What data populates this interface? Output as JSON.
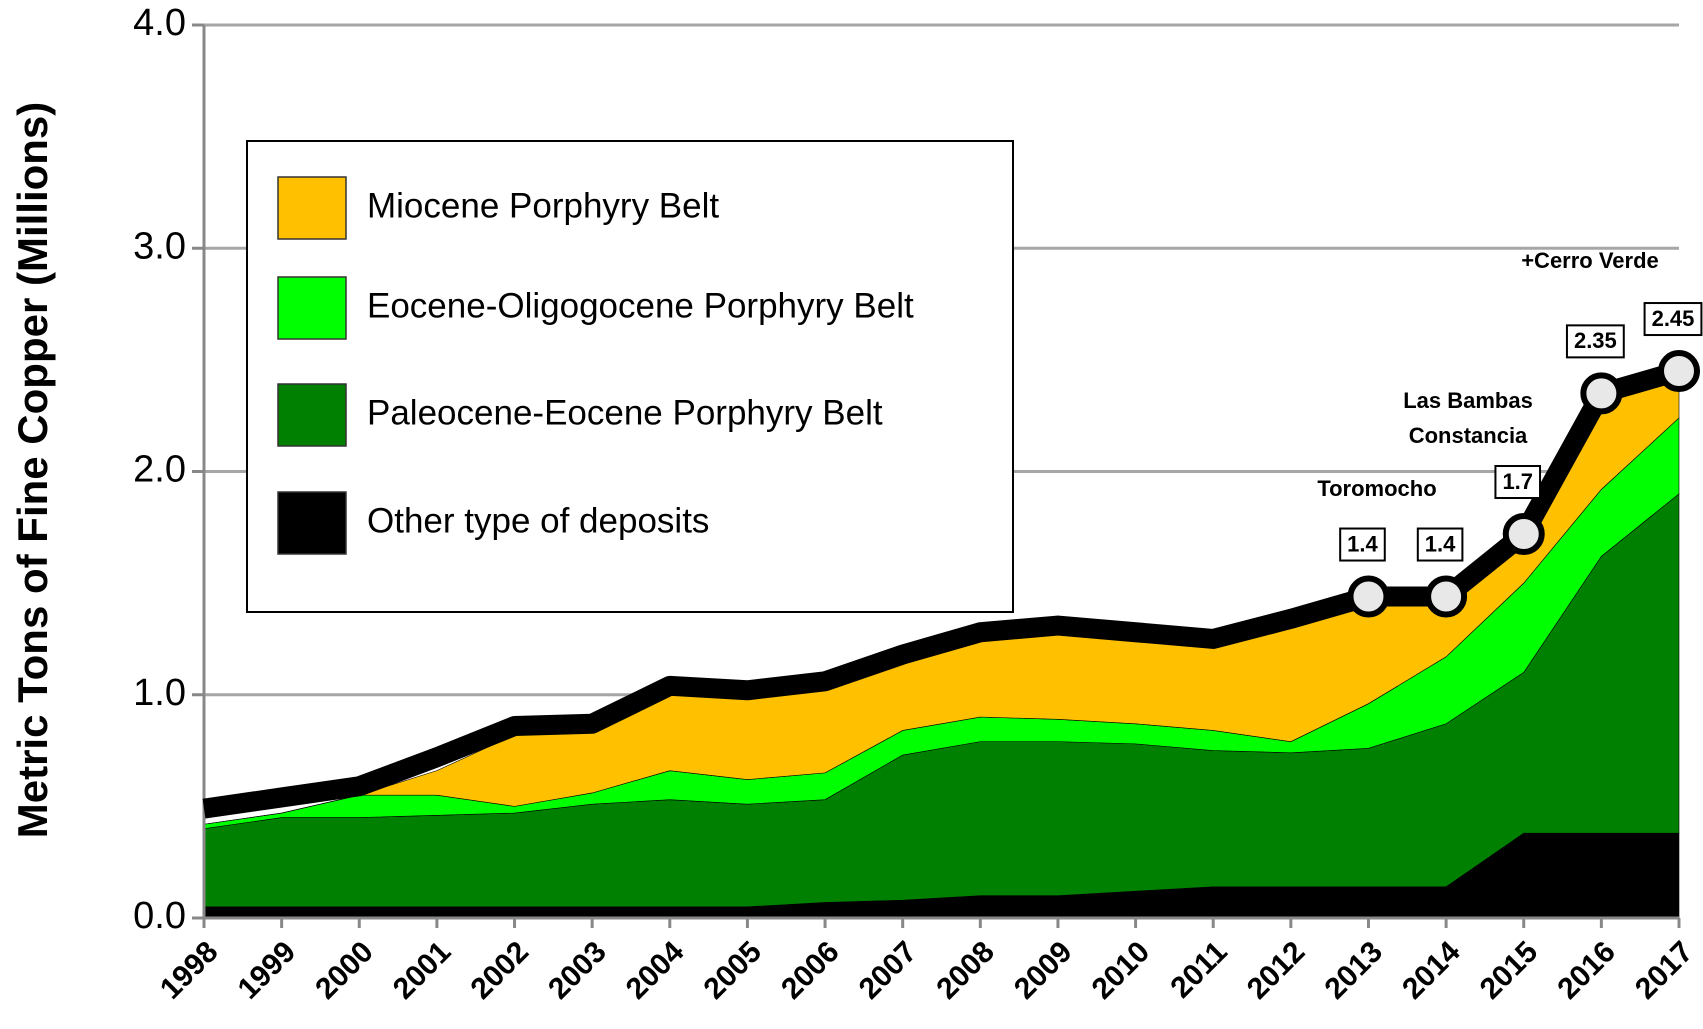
{
  "chart_data": {
    "type": "stacked_area",
    "y_label": "Metric Tons of  Fine Copper  (Millions)",
    "categories": [
      "1998",
      "1999",
      "2000",
      "2001",
      "2002",
      "2003",
      "2004",
      "2005",
      "2006",
      "2007",
      "2008",
      "2009",
      "2010",
      "2011",
      "2012",
      "2013",
      "2014",
      "2015",
      "2016",
      "2017"
    ],
    "series": [
      {
        "name": "Miocene Porphyry Belt",
        "color": "#ffc000",
        "values": [
          0,
          0,
          0,
          0.11,
          0.32,
          0.28,
          0.35,
          0.37,
          0.37,
          0.3,
          0.34,
          0.38,
          0.37,
          0.38,
          0.51,
          0.44,
          0.25,
          0.18,
          0.43,
          0.18
        ]
      },
      {
        "name": "Eocene-Oligogocene Porphyry Belt",
        "color": "#00ff00",
        "values": [
          0.02,
          0.02,
          0.1,
          0.09,
          0.03,
          0.05,
          0.13,
          0.11,
          0.12,
          0.11,
          0.11,
          0.1,
          0.09,
          0.09,
          0.05,
          0.2,
          0.3,
          0.4,
          0.3,
          0.34
        ]
      },
      {
        "name": "Paleocene-Eocene Porphyry Belt",
        "color": "#008000",
        "values": [
          0.35,
          0.4,
          0.4,
          0.41,
          0.42,
          0.46,
          0.48,
          0.46,
          0.46,
          0.65,
          0.69,
          0.69,
          0.66,
          0.61,
          0.6,
          0.62,
          0.73,
          0.72,
          1.24,
          1.52
        ]
      },
      {
        "name": "Other type of deposits",
        "color": "#000000",
        "values": [
          0.05,
          0.05,
          0.05,
          0.05,
          0.05,
          0.05,
          0.05,
          0.05,
          0.07,
          0.08,
          0.1,
          0.1,
          0.12,
          0.14,
          0.14,
          0.14,
          0.14,
          0.38,
          0.38,
          0.38
        ]
      }
    ],
    "total_line": {
      "color": "#000000",
      "marker_color": "#e8e8e8",
      "values": [
        0.49,
        0.54,
        0.59,
        0.72,
        0.86,
        0.87,
        1.04,
        1.02,
        1.06,
        1.18,
        1.28,
        1.31,
        1.28,
        1.25,
        1.34,
        1.44,
        1.44,
        1.72,
        2.35,
        2.45
      ],
      "value_labels": [
        null,
        null,
        null,
        null,
        null,
        null,
        null,
        null,
        null,
        null,
        null,
        null,
        null,
        null,
        null,
        "1.4",
        "1.4",
        "1.7",
        "2.35",
        "2.45"
      ]
    },
    "annotations": [
      "+Cerro Verde",
      "Las Bambas",
      "Constancia",
      "Toromocho"
    ],
    "ylim": [
      0,
      4
    ],
    "yticks": [
      {
        "value": 0,
        "label": "0.0"
      },
      {
        "value": 1,
        "label": "1.0"
      },
      {
        "value": 2,
        "label": "2.0"
      },
      {
        "value": 3,
        "label": "3.0"
      },
      {
        "value": 4,
        "label": "4.0"
      }
    ],
    "grid": true,
    "legend": "upper left"
  }
}
